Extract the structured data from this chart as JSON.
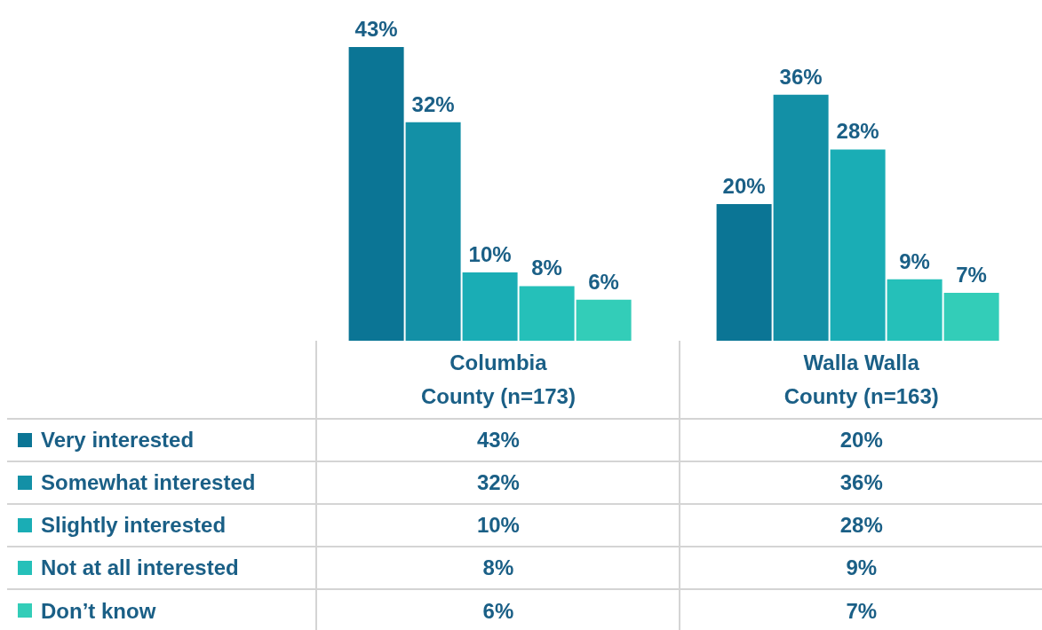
{
  "chart_data": {
    "type": "bar",
    "categories": [
      "Columbia\nCounty (n=173)",
      "Walla Walla\nCounty (n=163)"
    ],
    "legend": "bottom",
    "series": [
      {
        "name": "Very interested",
        "color": "#0b7595",
        "values": [
          43,
          20
        ],
        "value_labels": [
          "43%",
          "20%"
        ]
      },
      {
        "name": "Somewhat interested",
        "color": "#1390a6",
        "values": [
          32,
          36
        ],
        "value_labels": [
          "32%",
          "36%"
        ]
      },
      {
        "name": "Slightly interested",
        "color": "#1aadb5",
        "values": [
          10,
          28
        ],
        "value_labels": [
          "10%",
          "28%"
        ]
      },
      {
        "name": "Not at all interested",
        "color": "#25c0b9",
        "values": [
          8,
          9
        ],
        "value_labels": [
          "8%",
          "9%"
        ]
      },
      {
        "name": "Don’t know",
        "color": "#33cdb8",
        "values": [
          6,
          7
        ],
        "value_labels": [
          "6%",
          "7%"
        ]
      }
    ]
  }
}
